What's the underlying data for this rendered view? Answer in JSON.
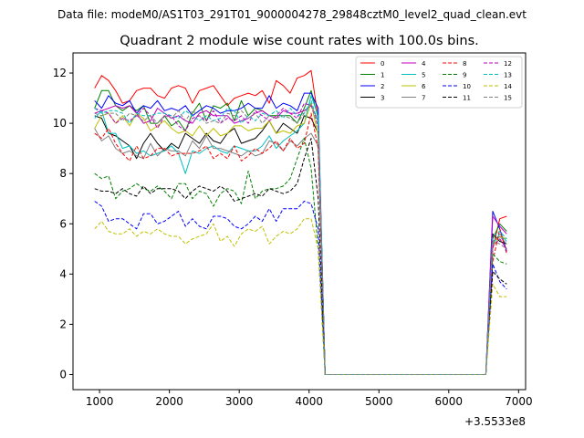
{
  "header": {
    "data_file_label": "Data file: modeM0/AS1T03_291T01_9000004278_29848cztM0_level2_quad_clean.evt"
  },
  "chart_data": {
    "type": "line",
    "title": "Quadrant 2 module wise count rates with 100.0s bins.",
    "xlabel": "",
    "ylabel": "",
    "x_offset_label": "+3.5533e8",
    "xlim": [
      620,
      7100
    ],
    "ylim": [
      -0.6,
      12.8
    ],
    "xticks": [
      1000,
      2000,
      3000,
      4000,
      5000,
      6000,
      7000
    ],
    "xtick_labels": [
      "1000",
      "2000",
      "3000",
      "4000",
      "5000",
      "6000",
      "7000"
    ],
    "yticks": [
      0,
      2,
      4,
      6,
      8,
      10,
      12
    ],
    "ytick_labels": [
      "0",
      "2",
      "4",
      "6",
      "8",
      "10",
      "12"
    ],
    "grid": false,
    "legend_placement": "top-right",
    "x_first": [
      930,
      1030,
      1130,
      1230,
      1330,
      1430,
      1530,
      1630,
      1730,
      1830,
      1930,
      2030,
      2130,
      2230,
      2330,
      2430,
      2530,
      2630,
      2730,
      2830,
      2930,
      3030,
      3130,
      3230,
      3330,
      3430,
      3530,
      3630,
      3730,
      3830,
      3930,
      4030,
      4130
    ],
    "x_second": [
      6630,
      6730,
      6830
    ],
    "series": [
      {
        "name": "0",
        "color": "#ff0000",
        "dash": false,
        "first": [
          11.4,
          11.9,
          11.7,
          11.3,
          10.8,
          10.9,
          11.3,
          11.4,
          11.4,
          11.1,
          11.0,
          11.4,
          11.5,
          11.4,
          10.8,
          11.3,
          11.4,
          11.5,
          11.1,
          10.7,
          11.0,
          11.1,
          11.2,
          11.1,
          11.3,
          10.8,
          11.7,
          11.5,
          11.2,
          11.8,
          11.9,
          12.1,
          10.2
        ],
        "second": [
          5.0,
          6.2,
          6.3
        ]
      },
      {
        "name": "1",
        "color": "#008000",
        "dash": false,
        "first": [
          10.6,
          11.3,
          11.3,
          10.7,
          10.5,
          10.7,
          10.5,
          10.7,
          10.0,
          10.0,
          10.3,
          9.9,
          10.1,
          9.7,
          10.4,
          10.8,
          10.1,
          10.7,
          10.6,
          10.8,
          10.1,
          10.9,
          10.3,
          10.6,
          10.5,
          10.3,
          10.3,
          10.3,
          10.3,
          10.0,
          10.6,
          11.3,
          10.2
        ],
        "second": [
          5.4,
          6.0,
          5.7
        ]
      },
      {
        "name": "2",
        "color": "#0000ff",
        "dash": false,
        "first": [
          10.9,
          10.6,
          11.1,
          10.8,
          10.7,
          10.9,
          10.4,
          10.7,
          10.6,
          10.9,
          10.5,
          10.6,
          10.5,
          10.7,
          10.3,
          10.5,
          10.7,
          10.6,
          10.4,
          10.5,
          10.5,
          10.6,
          10.8,
          10.6,
          10.6,
          11.1,
          10.6,
          10.8,
          10.7,
          10.5,
          11.2,
          11.2,
          10.6
        ],
        "second": [
          6.5,
          5.8,
          4.9
        ]
      },
      {
        "name": "3",
        "color": "#000000",
        "dash": false,
        "first": [
          10.3,
          10.2,
          9.6,
          9.5,
          9.3,
          9.1,
          8.6,
          9.2,
          9.6,
          9.2,
          8.9,
          9.2,
          9.0,
          9.6,
          9.4,
          9.2,
          9.6,
          9.3,
          9.2,
          9.6,
          9.8,
          9.2,
          9.3,
          9.4,
          9.7,
          10.1,
          9.6,
          10.0,
          9.8,
          9.6,
          10.3,
          10.2,
          9.6
        ],
        "second": [
          5.6,
          5.3,
          5.2
        ]
      },
      {
        "name": "4",
        "color": "#bf00bf",
        "dash": false,
        "first": [
          10.4,
          10.5,
          10.6,
          10.7,
          10.6,
          10.7,
          10.4,
          10.0,
          10.1,
          10.6,
          10.4,
          10.2,
          10.3,
          10.1,
          10.0,
          10.4,
          10.5,
          10.3,
          10.3,
          10.3,
          10.0,
          10.1,
          10.2,
          10.4,
          10.5,
          10.3,
          10.2,
          10.5,
          10.4,
          10.4,
          10.5,
          10.7,
          10.1
        ],
        "second": [
          6.3,
          5.9,
          5.6
        ]
      },
      {
        "name": "5",
        "color": "#00bfbf",
        "dash": false,
        "first": [
          10.2,
          10.5,
          9.6,
          9.6,
          9.0,
          9.1,
          8.8,
          8.9,
          8.7,
          8.8,
          8.9,
          9.1,
          8.8,
          8.0,
          8.9,
          8.8,
          9.0,
          9.1,
          8.9,
          8.8,
          9.1,
          9.0,
          8.9,
          8.9,
          9.1,
          9.5,
          9.0,
          9.3,
          9.5,
          9.7,
          10.0,
          11.1,
          10.3
        ],
        "second": [
          5.2,
          5.6,
          5.3
        ]
      },
      {
        "name": "6",
        "color": "#bfbf00",
        "dash": false,
        "first": [
          9.8,
          10.3,
          10.4,
          10.0,
          10.3,
          9.9,
          10.4,
          10.2,
          9.7,
          9.9,
          10.1,
          9.8,
          9.6,
          9.7,
          9.5,
          9.9,
          9.5,
          9.8,
          9.5,
          9.6,
          9.9,
          9.9,
          9.7,
          9.8,
          9.8,
          10.1,
          9.6,
          9.7,
          9.6,
          9.9,
          10.0,
          10.8,
          9.5
        ],
        "second": [
          5.1,
          5.5,
          5.4
        ]
      },
      {
        "name": "7",
        "color": "#808080",
        "dash": false,
        "first": [
          9.8,
          9.3,
          9.5,
          9.0,
          8.8,
          8.9,
          8.7,
          8.6,
          9.2,
          8.7,
          9.0,
          8.9,
          8.9,
          8.7,
          9.3,
          9.0,
          9.5,
          9.0,
          9.0,
          8.9,
          8.8,
          8.7,
          8.9,
          8.7,
          8.8,
          9.3,
          9.2,
          8.9,
          9.3,
          9.1,
          9.4,
          9.6,
          9.1
        ],
        "second": [
          5.3,
          5.5,
          5.2
        ]
      },
      {
        "name": "8",
        "color": "#ff0000",
        "dash": true,
        "first": [
          9.6,
          9.4,
          9.8,
          9.2,
          8.8,
          8.5,
          9.1,
          8.6,
          8.7,
          9.0,
          9.0,
          8.7,
          8.8,
          8.8,
          8.8,
          8.9,
          9.1,
          8.6,
          8.8,
          8.6,
          9.1,
          8.5,
          8.7,
          9.0,
          8.8,
          9.0,
          9.3,
          8.9,
          9.4,
          9.0,
          9.2,
          10.4,
          9.0
        ],
        "second": [
          4.5,
          5.8,
          4.8
        ]
      },
      {
        "name": "9",
        "color": "#008000",
        "dash": true,
        "first": [
          8.0,
          7.8,
          7.9,
          7.0,
          7.3,
          7.4,
          7.6,
          7.4,
          7.3,
          7.5,
          7.3,
          7.0,
          7.6,
          7.6,
          7.0,
          7.3,
          7.2,
          6.7,
          7.2,
          7.4,
          7.3,
          6.8,
          8.1,
          7.0,
          7.3,
          7.4,
          7.4,
          7.5,
          7.8,
          8.6,
          9.4,
          8.2,
          5.0
        ],
        "second": [
          4.8,
          4.5,
          4.4
        ]
      },
      {
        "name": "10",
        "color": "#0000ff",
        "dash": true,
        "first": [
          6.9,
          6.7,
          6.1,
          6.2,
          6.2,
          6.0,
          5.8,
          6.4,
          6.4,
          6.0,
          6.1,
          6.3,
          6.5,
          5.9,
          6.2,
          5.9,
          5.8,
          6.3,
          6.3,
          6.2,
          5.9,
          5.8,
          6.0,
          6.3,
          6.1,
          6.6,
          6.1,
          6.6,
          6.6,
          6.6,
          6.9,
          6.8,
          5.8
        ],
        "second": [
          4.4,
          3.7,
          3.4
        ]
      },
      {
        "name": "11",
        "color": "#000000",
        "dash": true,
        "first": [
          7.4,
          7.3,
          7.3,
          7.2,
          7.4,
          7.2,
          7.1,
          7.5,
          7.2,
          7.4,
          7.4,
          7.4,
          7.3,
          7.0,
          7.3,
          7.5,
          7.4,
          7.3,
          7.5,
          7.3,
          6.9,
          7.0,
          7.1,
          7.2,
          7.1,
          7.4,
          7.3,
          7.2,
          7.3,
          7.6,
          8.6,
          9.4,
          7.0
        ],
        "second": [
          4.1,
          3.8,
          3.6
        ]
      },
      {
        "name": "12",
        "color": "#bf00bf",
        "dash": true,
        "first": [
          10.6,
          10.5,
          10.4,
          10.0,
          10.2,
          10.1,
          10.3,
          10.6,
          10.3,
          9.8,
          10.3,
          10.3,
          9.9,
          9.7,
          10.2,
          10.3,
          10.1,
          10.5,
          10.0,
          10.2,
          10.1,
          10.3,
          10.0,
          10.5,
          10.3,
          10.1,
          10.3,
          10.6,
          10.4,
          10.2,
          10.8,
          10.7,
          9.9
        ],
        "second": [
          5.1,
          5.4,
          5.0
        ]
      },
      {
        "name": "13",
        "color": "#00bfbf",
        "dash": true,
        "first": [
          10.6,
          10.4,
          10.5,
          10.5,
          10.4,
          10.0,
          10.4,
          10.3,
          10.3,
          10.4,
          10.4,
          10.3,
          10.2,
          10.5,
          10.3,
          10.1,
          10.3,
          10.1,
          10.2,
          10.6,
          10.5,
          10.0,
          10.3,
          10.1,
          10.4,
          10.3,
          10.5,
          10.2,
          10.6,
          10.3,
          10.4,
          10.9,
          10.0
        ],
        "second": [
          5.5,
          5.7,
          5.4
        ]
      },
      {
        "name": "14",
        "color": "#bfbf00",
        "dash": true,
        "first": [
          5.8,
          6.1,
          5.7,
          5.6,
          5.6,
          5.8,
          5.5,
          5.7,
          5.6,
          5.8,
          5.6,
          5.5,
          5.5,
          5.2,
          5.4,
          5.5,
          5.6,
          6.0,
          5.3,
          5.5,
          5.1,
          5.6,
          5.8,
          5.7,
          5.9,
          5.2,
          5.5,
          5.7,
          5.6,
          5.8,
          6.2,
          6.2,
          5.0
        ],
        "second": [
          3.6,
          3.1,
          3.1
        ]
      },
      {
        "name": "15",
        "color": "#808080",
        "dash": true,
        "first": [
          10.4,
          10.3,
          10.4,
          10.4,
          10.1,
          10.4,
          10.3,
          10.1,
          10.3,
          10.0,
          10.3,
          10.2,
          10.5,
          10.1,
          10.5,
          10.3,
          10.0,
          10.1,
          10.0,
          10.4,
          10.3,
          10.5,
          10.2,
          10.4,
          10.0,
          10.3,
          10.2,
          10.3,
          10.2,
          10.0,
          10.4,
          10.8,
          9.8
        ],
        "second": [
          5.3,
          5.2,
          5.0
        ]
      }
    ]
  }
}
